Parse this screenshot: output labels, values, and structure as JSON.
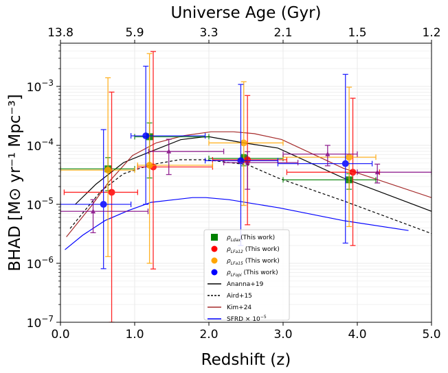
{
  "chart_data": {
    "type": "scatter",
    "title": "",
    "xlabel": "Redshift (z)",
    "ylabel": "BHAD [M⊙ yr⁻¹ Mpc⁻³]",
    "top_xlabel": "Universe Age (Gyr)",
    "xlim": [
      0,
      5
    ],
    "ylim": [
      1e-07,
      0.0054
    ],
    "yscale": "log",
    "grid": true,
    "legend_placement": "lower-center",
    "x_ticks": [
      "0.0",
      "1.0",
      "2.0",
      "3.0",
      "4.0",
      "5.0"
    ],
    "x_tick_values": [
      0,
      1,
      2,
      3,
      4,
      5
    ],
    "top_ticks": [
      "13.8",
      "5.9",
      "3.3",
      "2.1",
      "1.5",
      "1.2"
    ],
    "y_ticks": [
      {
        "base": "10",
        "exp": "−3",
        "value": 0.001
      },
      {
        "base": "10",
        "exp": "−4",
        "value": 0.0001
      },
      {
        "base": "10",
        "exp": "−5",
        "value": 1e-05
      },
      {
        "base": "10",
        "exp": "−6",
        "value": 1e-06
      },
      {
        "base": "10",
        "exp": "−7",
        "value": 1e-07
      }
    ],
    "points": [
      {
        "name": "ρ",
        "sub": "Ldax",
        "suffix": "(This work)",
        "color": "#008000",
        "marker": "square",
        "data": [
          {
            "x": 0.64,
            "y": 4e-05,
            "xlo": 0.0,
            "xhi": 1.0,
            "ylo": 1.7e-05,
            "yhi": 6.2e-05
          },
          {
            "x": 1.2,
            "y": 0.00014,
            "xlo": 1.0,
            "xhi": 2.0,
            "ylo": 2.8e-05,
            "yhi": 0.00024
          },
          {
            "x": 2.47,
            "y": 6e-05,
            "xlo": 2.0,
            "xhi": 3.0,
            "ylo": 4.5e-05,
            "yhi": 7e-05
          },
          {
            "x": 3.89,
            "y": 2.6e-05,
            "xlo": 3.0,
            "xhi": 4.25,
            "ylo": 1.8e-05,
            "yhi": 3.3e-05
          }
        ]
      },
      {
        "name": "ρ",
        "sub": "LFa12",
        "suffix": " (This work)",
        "color": "#ff0000",
        "marker": "circle",
        "data": [
          {
            "x": 0.69,
            "y": 1.6e-05,
            "xlo": 0.05,
            "xhi": 1.04,
            "ylo": 1e-07,
            "yhi": 0.0008
          },
          {
            "x": 1.25,
            "y": 4.3e-05,
            "xlo": 1.04,
            "xhi": 2.05,
            "ylo": 8e-07,
            "yhi": 0.0039
          },
          {
            "x": 2.52,
            "y": 5.7e-05,
            "xlo": 2.05,
            "xhi": 3.05,
            "ylo": 4.5e-06,
            "yhi": 0.0007
          },
          {
            "x": 3.94,
            "y": 3.5e-05,
            "xlo": 3.05,
            "xhi": 4.3,
            "ylo": 2e-06,
            "yhi": 0.00063
          }
        ]
      },
      {
        "name": "ρ",
        "sub": "LFa15",
        "suffix": " (This work)",
        "color": "#ffa500",
        "marker": "circle",
        "data": [
          {
            "x": 0.64,
            "y": 3.8e-05,
            "xlo": 0.0,
            "xhi": 1.0,
            "ylo": 1.3e-06,
            "yhi": 0.0014
          },
          {
            "x": 1.2,
            "y": 4.6e-05,
            "xlo": 1.04,
            "xhi": 2.05,
            "ylo": 1e-06,
            "yhi": 0.0036
          },
          {
            "x": 2.47,
            "y": 0.00011,
            "xlo": 2.0,
            "xhi": 3.0,
            "ylo": 9.6e-06,
            "yhi": 0.0012
          },
          {
            "x": 3.89,
            "y": 6.3e-05,
            "xlo": 3.0,
            "xhi": 4.25,
            "ylo": 4.2e-06,
            "yhi": 0.00097
          }
        ]
      },
      {
        "name": "ρ",
        "sub": "LFopi",
        "suffix": " (This work)",
        "color": "#0000ff",
        "marker": "circle",
        "data": [
          {
            "x": 0.58,
            "y": 1e-05,
            "xlo": 0.0,
            "xhi": 0.95,
            "ylo": 8.1e-07,
            "yhi": 0.000185
          },
          {
            "x": 1.15,
            "y": 0.000145,
            "xlo": 0.95,
            "xhi": 1.95,
            "ylo": 1e-05,
            "yhi": 0.0022
          },
          {
            "x": 2.43,
            "y": 5.5e-05,
            "xlo": 1.95,
            "xhi": 2.93,
            "ylo": 2e-06,
            "yhi": 0.00108
          },
          {
            "x": 3.84,
            "y": 4.9e-05,
            "xlo": 2.93,
            "xhi": 4.2,
            "ylo": 2.2e-06,
            "yhi": 0.0016
          }
        ]
      },
      {
        "color": "#800080",
        "marker": "triangle",
        "data": [
          {
            "x": 0.44,
            "y": 7.6e-06,
            "xlo": 0.0,
            "xhi": 1.18,
            "ylo": 3.3e-06,
            "yhi": 1.2e-05
          },
          {
            "x": 1.46,
            "y": 7.9e-05,
            "xlo": 1.19,
            "xhi": 2.2,
            "ylo": 3.2e-05,
            "yhi": 0.000127
          },
          {
            "x": 2.52,
            "y": 5.1e-05,
            "xlo": 2.2,
            "xhi": 3.2,
            "ylo": 1.8e-05,
            "yhi": 7.8e-05
          },
          {
            "x": 3.6,
            "y": 7.1e-05,
            "xlo": 3.0,
            "xhi": 4.0,
            "ylo": 4.5e-05,
            "yhi": 0.0001
          },
          {
            "x": 4.27,
            "y": 3.5e-05,
            "xlo": 4.0,
            "xhi": 5.0,
            "ylo": 2.3e-05,
            "yhi": 4.8e-05
          }
        ]
      }
    ],
    "lines": [
      {
        "name": "Ananna+19",
        "color": "#000000",
        "dash": false,
        "x": [
          0.2,
          0.48,
          0.85,
          1.19,
          1.62,
          1.9,
          2.0,
          2.47,
          2.93,
          3.81,
          5.0
        ],
        "y": [
          1e-05,
          2.2e-05,
          5.1e-05,
          7.6e-05,
          0.000125,
          0.000138,
          0.00014,
          0.00011,
          9e-05,
          2.8e-05,
          7.6e-06
        ]
      },
      {
        "name": "Aird+15",
        "color": "#000000",
        "dash": true,
        "x": [
          0.13,
          0.33,
          0.55,
          0.85,
          1.22,
          1.6,
          1.96,
          2.52,
          2.93,
          3.81,
          5.0
        ],
        "y": [
          3.9e-06,
          7.9e-06,
          1.7e-05,
          3.3e-05,
          4.7e-05,
          5.7e-05,
          5.7e-05,
          4.7e-05,
          2.8e-05,
          1.15e-05,
          3.2e-06
        ]
      },
      {
        "name": "Kim+24",
        "color": "#a52a2a",
        "dash": false,
        "x": [
          0.08,
          0.42,
          0.64,
          0.97,
          1.29,
          1.66,
          2.03,
          2.33,
          2.61,
          2.98,
          3.81,
          5.0
        ],
        "y": [
          2.8e-06,
          9.5e-06,
          2.3e-05,
          6.7e-05,
          0.00011,
          0.000146,
          0.00017,
          0.00017,
          0.000158,
          0.000126,
          4.1e-05,
          1.3e-05
        ]
      },
      {
        "name": "SFRD × 10",
        "name_exp": "−5",
        "color": "#0000ff",
        "dash": false,
        "x": [
          0.06,
          0.3,
          0.6,
          0.92,
          1.22,
          1.78,
          1.96,
          2.27,
          2.95,
          3.81,
          4.69
        ],
        "y": [
          1.7e-06,
          3e-06,
          5.3e-06,
          7.9e-06,
          1.08e-05,
          1.3e-05,
          1.3e-05,
          1.2e-05,
          8.7e-06,
          5.3e-06,
          3.6e-06
        ]
      }
    ]
  }
}
